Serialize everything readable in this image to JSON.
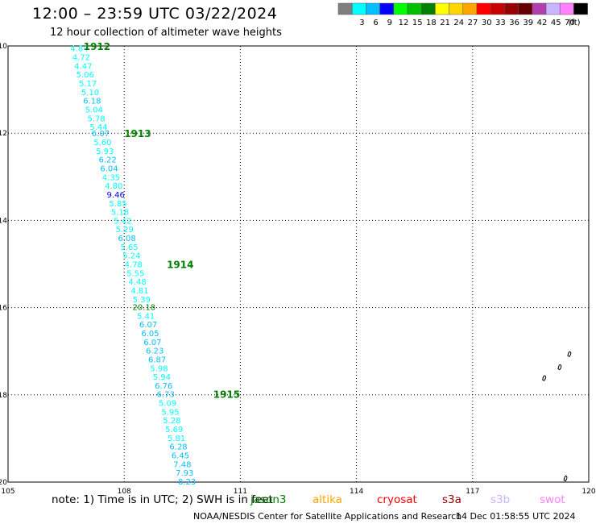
{
  "header": {
    "title": "12:00 – 23:59 UTC 03/22/2024",
    "subtitle": "12 hour collection of altimeter wave heights"
  },
  "legend": {
    "unit": "(ft)",
    "swatches": [
      {
        "color": "#7f7f7f",
        "label": ""
      },
      {
        "color": "#00ffff",
        "label": "3"
      },
      {
        "color": "#00bfff",
        "label": "6"
      },
      {
        "color": "#0000ff",
        "label": "9"
      },
      {
        "color": "#00ff00",
        "label": "12"
      },
      {
        "color": "#00c000",
        "label": "15"
      },
      {
        "color": "#008000",
        "label": "18"
      },
      {
        "color": "#ffff00",
        "label": "21"
      },
      {
        "color": "#ffd700",
        "label": "24"
      },
      {
        "color": "#ffa500",
        "label": "27"
      },
      {
        "color": "#ff0000",
        "label": "30"
      },
      {
        "color": "#c80000",
        "label": "33"
      },
      {
        "color": "#960000",
        "label": "36"
      },
      {
        "color": "#640000",
        "label": "39"
      },
      {
        "color": "#b040b0",
        "label": "42"
      },
      {
        "color": "#c8b4ff",
        "label": "45"
      },
      {
        "color": "#ff80ff",
        "label": "70"
      },
      {
        "color": "#000000",
        "label": ""
      }
    ]
  },
  "map": {
    "lon_min": 105,
    "lon_max": 120,
    "lat_min": -20,
    "lat_max": -10,
    "x_ticks": [
      {
        "value": 105,
        "label": "105"
      },
      {
        "value": 108,
        "label": "108"
      },
      {
        "value": 111,
        "label": "111"
      },
      {
        "value": 114,
        "label": "114"
      },
      {
        "value": 117,
        "label": "117"
      },
      {
        "value": 120,
        "label": "120"
      }
    ],
    "y_ticks": [
      {
        "value": -10,
        "label": "-10"
      },
      {
        "value": -12,
        "label": "-12"
      },
      {
        "value": -14,
        "label": "-14"
      },
      {
        "value": -16,
        "label": "-16"
      },
      {
        "value": -18,
        "label": "-18"
      },
      {
        "value": -20,
        "label": "-20"
      }
    ]
  },
  "track": {
    "color_light": "#00ffff",
    "color_mid": "#00bfff",
    "color_high": "#0000ff",
    "color_peak": "#008000",
    "observations": [
      {
        "lon": 106.55,
        "lat": -10.05,
        "swh": "4.84"
      },
      {
        "lon": 106.6,
        "lat": -10.25,
        "swh": "4.72"
      },
      {
        "lon": 106.65,
        "lat": -10.45,
        "swh": "4.47"
      },
      {
        "lon": 106.7,
        "lat": -10.65,
        "swh": "5.06"
      },
      {
        "lon": 106.77,
        "lat": -10.85,
        "swh": "5.17"
      },
      {
        "lon": 106.83,
        "lat": -11.05,
        "swh": "5.10"
      },
      {
        "lon": 106.88,
        "lat": -11.25,
        "swh": "6.18"
      },
      {
        "lon": 106.93,
        "lat": -11.45,
        "swh": "5.04"
      },
      {
        "lon": 106.99,
        "lat": -11.65,
        "swh": "5.78"
      },
      {
        "lon": 107.05,
        "lat": -11.85,
        "swh": "5.44"
      },
      {
        "lon": 107.1,
        "lat": -12.0,
        "swh": "6.07"
      },
      {
        "lon": 107.15,
        "lat": -12.2,
        "swh": "5.60"
      },
      {
        "lon": 107.21,
        "lat": -12.4,
        "swh": "5.93"
      },
      {
        "lon": 107.28,
        "lat": -12.6,
        "swh": "6.22"
      },
      {
        "lon": 107.32,
        "lat": -12.8,
        "swh": "6.04"
      },
      {
        "lon": 107.37,
        "lat": -13.0,
        "swh": "4.35"
      },
      {
        "lon": 107.44,
        "lat": -13.2,
        "swh": "4.80"
      },
      {
        "lon": 107.49,
        "lat": -13.4,
        "swh": "9.46"
      },
      {
        "lon": 107.55,
        "lat": -13.6,
        "swh": "5.85"
      },
      {
        "lon": 107.6,
        "lat": -13.8,
        "swh": "5.18"
      },
      {
        "lon": 107.67,
        "lat": -14.0,
        "swh": "5.42"
      },
      {
        "lon": 107.72,
        "lat": -14.2,
        "swh": "5.29"
      },
      {
        "lon": 107.78,
        "lat": -14.4,
        "swh": "6.08"
      },
      {
        "lon": 107.84,
        "lat": -14.6,
        "swh": "5.65"
      },
      {
        "lon": 107.9,
        "lat": -14.8,
        "swh": "5.24"
      },
      {
        "lon": 107.95,
        "lat": -15.0,
        "swh": "4.78"
      },
      {
        "lon": 108.0,
        "lat": -15.2,
        "swh": "5.55"
      },
      {
        "lon": 108.05,
        "lat": -15.4,
        "swh": "4.48"
      },
      {
        "lon": 108.11,
        "lat": -15.6,
        "swh": "4.81"
      },
      {
        "lon": 108.16,
        "lat": -15.8,
        "swh": "5.39"
      },
      {
        "lon": 108.22,
        "lat": -15.98,
        "swh": "20.18"
      },
      {
        "lon": 108.27,
        "lat": -16.18,
        "swh": "5.41"
      },
      {
        "lon": 108.33,
        "lat": -16.38,
        "swh": "6.07"
      },
      {
        "lon": 108.38,
        "lat": -16.58,
        "swh": "6.05"
      },
      {
        "lon": 108.44,
        "lat": -16.78,
        "swh": "6.07"
      },
      {
        "lon": 108.5,
        "lat": -16.98,
        "swh": "6.23"
      },
      {
        "lon": 108.56,
        "lat": -17.18,
        "swh": "6.87"
      },
      {
        "lon": 108.61,
        "lat": -17.38,
        "swh": "5.98"
      },
      {
        "lon": 108.68,
        "lat": -17.58,
        "swh": "5.94"
      },
      {
        "lon": 108.73,
        "lat": -17.78,
        "swh": "6.76"
      },
      {
        "lon": 108.78,
        "lat": -17.98,
        "swh": "6.73"
      },
      {
        "lon": 108.83,
        "lat": -18.18,
        "swh": "5.09"
      },
      {
        "lon": 108.9,
        "lat": -18.38,
        "swh": "5.95"
      },
      {
        "lon": 108.94,
        "lat": -18.58,
        "swh": "5.28"
      },
      {
        "lon": 109.0,
        "lat": -18.78,
        "swh": "5.69"
      },
      {
        "lon": 109.06,
        "lat": -18.98,
        "swh": "5.81"
      },
      {
        "lon": 109.11,
        "lat": -19.18,
        "swh": "6.28"
      },
      {
        "lon": 109.16,
        "lat": -19.38,
        "swh": "6.45"
      },
      {
        "lon": 109.21,
        "lat": -19.58,
        "swh": "7.48"
      },
      {
        "lon": 109.27,
        "lat": -19.78,
        "swh": "7.93"
      },
      {
        "lon": 109.33,
        "lat": -19.98,
        "swh": "8.23"
      }
    ],
    "time_marks": [
      {
        "lon": 106.95,
        "lat": -10.0,
        "label": "1912"
      },
      {
        "lon": 108.0,
        "lat": -12.0,
        "label": "1913"
      },
      {
        "lon": 109.1,
        "lat": -15.0,
        "label": "1914"
      },
      {
        "lon": 110.3,
        "lat": -17.98,
        "label": "1915"
      }
    ]
  },
  "islands": [
    {
      "lon": 119.5,
      "lat": -17.05
    },
    {
      "lon": 119.25,
      "lat": -17.35
    },
    {
      "lon": 118.85,
      "lat": -17.6
    },
    {
      "lon": 119.4,
      "lat": -19.9
    }
  ],
  "footer": {
    "note": "note:  1) Time is in UTC; 2) SWH is in feet",
    "satellites": [
      {
        "name": "jason3",
        "color": "#008000"
      },
      {
        "name": "altika",
        "color": "#ffa500"
      },
      {
        "name": "cryosat",
        "color": "#ff0000"
      },
      {
        "name": "s3a",
        "color": "#960000"
      },
      {
        "name": "s3b",
        "color": "#c8b4ff"
      },
      {
        "name": "swot",
        "color": "#ff80ff"
      }
    ],
    "credit": "NOAA/NESDIS Center for Satellite Applications and Research",
    "generated": "14 Dec 01:58:55 UTC 2024"
  }
}
